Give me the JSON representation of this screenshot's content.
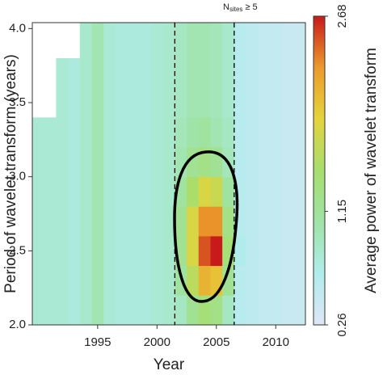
{
  "chart_data": {
    "type": "heatmap",
    "x_label": "Year",
    "y_label": "Period of wavelet transform (years)",
    "colorbar_label": "Average power of wavelet transform",
    "x": [
      1990,
      1991,
      1992,
      1993,
      1994,
      1995,
      1996,
      1997,
      1998,
      1999,
      2000,
      2001,
      2002,
      2003,
      2004,
      2005,
      2006,
      2007,
      2008,
      2009,
      2010,
      2011,
      2012
    ],
    "y": [
      2.1,
      2.3,
      2.5,
      2.7,
      2.9,
      3.1,
      3.3,
      3.5,
      3.7,
      3.9
    ],
    "values": [
      [
        0.8,
        0.8,
        0.8,
        0.75,
        0.85,
        1.0,
        0.8,
        0.75,
        0.75,
        0.75,
        0.8,
        0.85,
        0.9,
        1.2,
        1.4,
        1.3,
        0.9,
        0.6,
        0.55,
        0.5,
        0.5,
        0.45,
        0.45
      ],
      [
        0.8,
        0.8,
        0.8,
        0.75,
        0.85,
        1.0,
        0.8,
        0.75,
        0.75,
        0.75,
        0.8,
        0.85,
        1.1,
        1.6,
        2.1,
        2.0,
        1.2,
        0.6,
        0.55,
        0.5,
        0.5,
        0.45,
        0.45
      ],
      [
        0.8,
        0.8,
        0.8,
        0.75,
        0.85,
        1.0,
        0.8,
        0.75,
        0.75,
        0.75,
        0.8,
        0.85,
        1.2,
        1.8,
        2.5,
        2.68,
        1.4,
        0.65,
        0.55,
        0.5,
        0.5,
        0.45,
        0.45
      ],
      [
        0.8,
        0.8,
        0.8,
        0.75,
        0.85,
        1.0,
        0.8,
        0.75,
        0.75,
        0.75,
        0.8,
        0.85,
        1.2,
        1.8,
        2.3,
        2.3,
        1.3,
        0.6,
        0.55,
        0.5,
        0.5,
        0.45,
        0.45
      ],
      [
        0.8,
        0.8,
        0.8,
        0.75,
        0.85,
        1.0,
        0.8,
        0.75,
        0.75,
        0.75,
        0.8,
        0.85,
        1.1,
        1.5,
        1.8,
        1.7,
        1.1,
        0.6,
        0.55,
        0.5,
        0.5,
        0.45,
        0.45
      ],
      [
        0.8,
        0.8,
        0.8,
        0.75,
        0.85,
        1.0,
        0.8,
        0.75,
        0.75,
        0.75,
        0.8,
        0.85,
        1.0,
        1.2,
        1.3,
        1.2,
        0.95,
        0.6,
        0.55,
        0.5,
        0.5,
        0.45,
        0.45
      ],
      [
        0.8,
        0.8,
        0.8,
        0.75,
        0.85,
        1.0,
        0.8,
        0.75,
        0.75,
        0.75,
        0.8,
        0.85,
        0.95,
        1.05,
        1.1,
        1.0,
        0.9,
        0.6,
        0.55,
        0.5,
        0.5,
        0.45,
        0.45
      ],
      [
        null,
        null,
        0.8,
        0.75,
        0.85,
        1.0,
        0.8,
        0.75,
        0.75,
        0.75,
        0.8,
        0.85,
        0.9,
        1.0,
        1.0,
        0.95,
        0.85,
        0.6,
        0.55,
        0.5,
        0.5,
        0.45,
        0.45
      ],
      [
        null,
        null,
        0.8,
        0.75,
        0.85,
        1.0,
        0.8,
        0.75,
        0.75,
        0.75,
        0.8,
        0.85,
        0.9,
        1.0,
        1.0,
        0.95,
        0.85,
        0.6,
        0.55,
        0.5,
        0.5,
        0.45,
        0.45
      ],
      [
        null,
        null,
        null,
        null,
        0.85,
        1.0,
        0.8,
        0.75,
        0.75,
        0.75,
        0.8,
        0.85,
        0.9,
        1.0,
        1.0,
        0.95,
        0.85,
        0.6,
        0.55,
        0.5,
        0.5,
        0.45,
        0.45
      ]
    ],
    "xlim": [
      1989.5,
      2012.5
    ],
    "ylim": [
      2.0,
      4.04
    ],
    "xticks": [
      1995,
      2000,
      2005,
      2010
    ],
    "yticks": [
      {
        "value": 2.0,
        "label": "2.0"
      },
      {
        "value": 2.5,
        "label": "2.5"
      },
      {
        "value": 3.0,
        "label": "3.0"
      },
      {
        "value": 3.5,
        "label": "3.5"
      },
      {
        "value": 4.0,
        "label": "4.0"
      }
    ],
    "clim": [
      0.26,
      2.68
    ],
    "cticks": [
      0.26,
      1.15,
      2.68
    ],
    "colorscale": [
      "#dde6f7",
      "#b0ecec",
      "#9fe3a6",
      "#a6de6e",
      "#e4d43c",
      "#ec9a2c",
      "#c81a1a"
    ],
    "vlines": [
      2001.5,
      2006.5
    ],
    "annotation": {
      "main": "N",
      "sub": "sites",
      "rest": "≥ 5"
    }
  }
}
